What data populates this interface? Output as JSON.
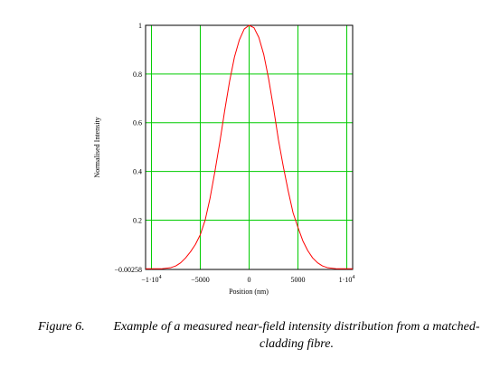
{
  "chart_data": {
    "type": "line",
    "xlabel": "Position (nm)",
    "ylabel": "Normalised Intensity",
    "xlim": [
      -10600,
      10600
    ],
    "ylim": [
      -0.00258,
      1
    ],
    "grid": true,
    "x_ticks": [
      {
        "value": -10000,
        "base": "−1·10",
        "exp": "4"
      },
      {
        "value": -5000,
        "base": "−5000",
        "exp": ""
      },
      {
        "value": 0,
        "base": "0",
        "exp": ""
      },
      {
        "value": 5000,
        "base": "5000",
        "exp": ""
      },
      {
        "value": 10000,
        "base": "1·10",
        "exp": "4"
      }
    ],
    "y_ticks": [
      {
        "value": -0.00258,
        "label": "−0.00258"
      },
      {
        "value": 0.2,
        "label": "0.2"
      },
      {
        "value": 0.4,
        "label": "0.4"
      },
      {
        "value": 0.6,
        "label": "0.6"
      },
      {
        "value": 0.8,
        "label": "0.8"
      },
      {
        "value": 1,
        "label": "1"
      }
    ],
    "series": [
      {
        "color": "#ff0000",
        "x": [
          -10600,
          -10000,
          -9000,
          -8000,
          -7500,
          -7000,
          -6500,
          -6000,
          -5500,
          -5000,
          -4500,
          -4000,
          -3500,
          -3000,
          -2500,
          -2000,
          -1500,
          -1000,
          -500,
          0,
          500,
          1000,
          1500,
          2000,
          2500,
          3000,
          3500,
          4000,
          4500,
          5000,
          5500,
          6000,
          6500,
          7000,
          7500,
          8000,
          9000,
          10000,
          10600
        ],
        "y": [
          0,
          0,
          0,
          0.005,
          0.012,
          0.025,
          0.045,
          0.07,
          0.1,
          0.14,
          0.2,
          0.29,
          0.4,
          0.52,
          0.65,
          0.77,
          0.87,
          0.94,
          0.985,
          1,
          0.99,
          0.95,
          0.88,
          0.78,
          0.66,
          0.53,
          0.42,
          0.32,
          0.23,
          0.17,
          0.115,
          0.075,
          0.045,
          0.025,
          0.012,
          0.005,
          0,
          0,
          0
        ]
      }
    ]
  },
  "colors": {
    "grid": "#00cc00",
    "curve": "#ff0000",
    "axis": "#000000"
  },
  "caption": {
    "number": "Figure 6.",
    "text": "Example of a measured near-field intensity distribution from a matched-cladding fibre."
  }
}
